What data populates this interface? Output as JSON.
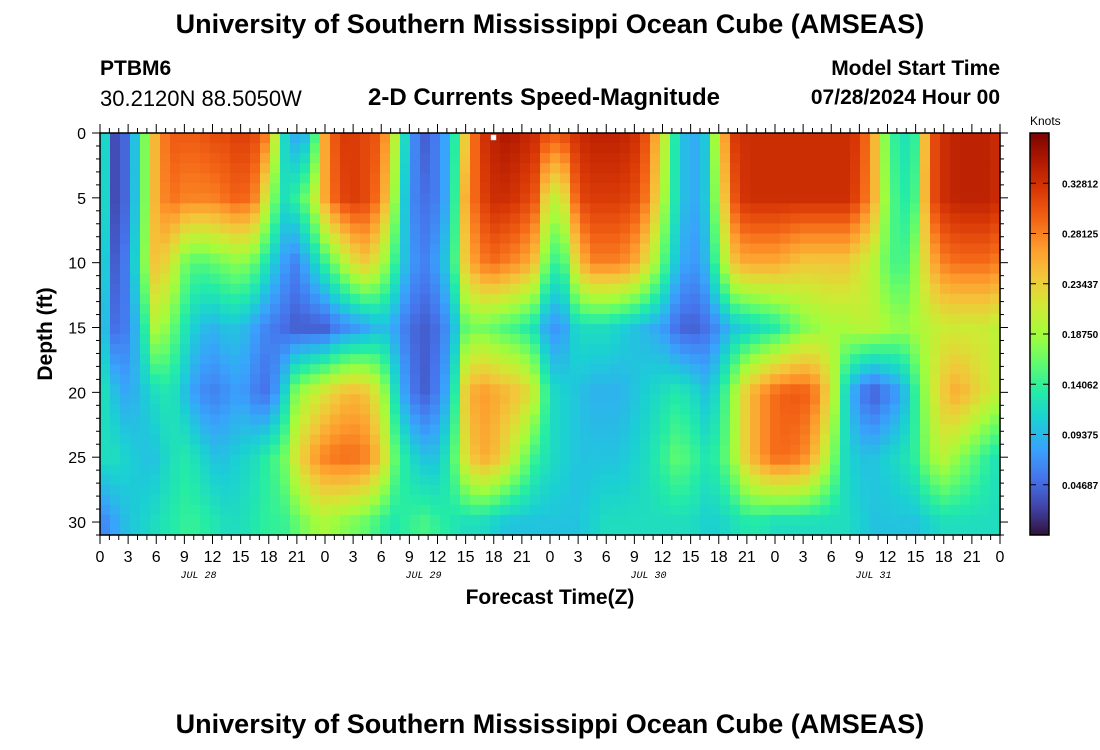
{
  "page": {
    "title_top": "University of Southern Mississippi Ocean Cube (AMSEAS)",
    "title_bottom": "University of Southern Mississippi Ocean Cube (AMSEAS)",
    "station_id": "PTBM6",
    "station_coords": "30.2120N  88.5050W",
    "plot_title": "2-D Currents Speed-Magnitude",
    "model_start_label": "Model Start Time",
    "model_start_value": "07/28/2024 Hour 00"
  },
  "chart_data": {
    "type": "heatmap",
    "title": "2-D Currents Speed-Magnitude",
    "xlabel": "Forecast Time(Z)",
    "ylabel": "Depth (ft)",
    "colorbar_label": "Knots",
    "xlim": [
      0,
      96
    ],
    "ylim": [
      31,
      0
    ],
    "x_tick_labels": [
      "0",
      "3",
      "6",
      "9",
      "12",
      "15",
      "18",
      "21",
      "0",
      "3",
      "6",
      "9",
      "12",
      "15",
      "18",
      "21",
      "0",
      "3",
      "6",
      "9",
      "12",
      "15",
      "18",
      "21",
      "0",
      "3",
      "6",
      "9",
      "12",
      "15",
      "18",
      "21",
      "0"
    ],
    "y_tick_labels": [
      "0",
      "5",
      "10",
      "15",
      "20",
      "25",
      "30"
    ],
    "y_ticks": [
      0,
      5,
      10,
      15,
      20,
      25,
      30
    ],
    "day_labels": [
      "JUL 28",
      "JUL 29",
      "JUL 30",
      "JUL 31"
    ],
    "colorbar_ticks": [
      "0.04687",
      "0.09375",
      "0.14062",
      "0.18750",
      "0.23437",
      "0.28125",
      "0.32812"
    ],
    "colorbar_range": [
      0.0,
      0.375
    ],
    "colormap": [
      "#30123b",
      "#4145ab",
      "#4675ed",
      "#39a2fc",
      "#1bcfd4",
      "#24eca6",
      "#61fc6c",
      "#a4fc3b",
      "#d1e834",
      "#f3c63a",
      "#fe9b2d",
      "#f36315",
      "#d93806",
      "#b11901",
      "#7a0402"
    ],
    "depths_ft": [
      0,
      5,
      10,
      15,
      20,
      25,
      30
    ],
    "x_hours": [
      0,
      1.5,
      3,
      4.5,
      6,
      7.5,
      9,
      10.5,
      12,
      13.5,
      15,
      16.5,
      18,
      19.5,
      21,
      22.5,
      24,
      25.5,
      27,
      28.5,
      30,
      31.5,
      33,
      34.5,
      36,
      37.5,
      39,
      40.5,
      42,
      43.5,
      45,
      46.5,
      48,
      49.5,
      51,
      52.5,
      54,
      55.5,
      57,
      58.5,
      60,
      61.5,
      63,
      64.5,
      66,
      67.5,
      69,
      70.5,
      72,
      73.5,
      75,
      76.5,
      78,
      79.5,
      81,
      82.5,
      84,
      85.5,
      87,
      88.5,
      90,
      91.5,
      93,
      94.5,
      96
    ],
    "speed_knots": [
      [
        0.16,
        0.03,
        0.05,
        0.15,
        0.26,
        0.3,
        0.3,
        0.3,
        0.31,
        0.31,
        0.32,
        0.31,
        0.28,
        0.12,
        0.08,
        0.1,
        0.26,
        0.32,
        0.32,
        0.31,
        0.3,
        0.2,
        0.08,
        0.04,
        0.06,
        0.1,
        0.24,
        0.32,
        0.34,
        0.35,
        0.34,
        0.33,
        0.3,
        0.31,
        0.33,
        0.34,
        0.34,
        0.34,
        0.33,
        0.3,
        0.22,
        0.12,
        0.08,
        0.1,
        0.22,
        0.32,
        0.33,
        0.33,
        0.33,
        0.33,
        0.33,
        0.33,
        0.33,
        0.33,
        0.32,
        0.26,
        0.16,
        0.12,
        0.14,
        0.3,
        0.33,
        0.34,
        0.34,
        0.34,
        0.33
      ],
      [
        0.16,
        0.03,
        0.05,
        0.15,
        0.26,
        0.29,
        0.28,
        0.28,
        0.28,
        0.29,
        0.3,
        0.28,
        0.2,
        0.12,
        0.14,
        0.18,
        0.26,
        0.31,
        0.32,
        0.31,
        0.28,
        0.18,
        0.07,
        0.05,
        0.06,
        0.1,
        0.26,
        0.31,
        0.33,
        0.33,
        0.32,
        0.3,
        0.2,
        0.22,
        0.31,
        0.32,
        0.32,
        0.32,
        0.31,
        0.28,
        0.2,
        0.12,
        0.08,
        0.1,
        0.2,
        0.3,
        0.33,
        0.33,
        0.33,
        0.33,
        0.33,
        0.33,
        0.33,
        0.33,
        0.31,
        0.26,
        0.17,
        0.13,
        0.15,
        0.3,
        0.33,
        0.34,
        0.34,
        0.34,
        0.33
      ],
      [
        0.14,
        0.04,
        0.06,
        0.16,
        0.25,
        0.22,
        0.17,
        0.15,
        0.16,
        0.17,
        0.18,
        0.16,
        0.12,
        0.08,
        0.06,
        0.1,
        0.14,
        0.18,
        0.22,
        0.24,
        0.2,
        0.14,
        0.08,
        0.06,
        0.08,
        0.12,
        0.24,
        0.28,
        0.29,
        0.28,
        0.27,
        0.24,
        0.14,
        0.15,
        0.24,
        0.28,
        0.28,
        0.28,
        0.26,
        0.22,
        0.16,
        0.1,
        0.07,
        0.09,
        0.16,
        0.24,
        0.26,
        0.26,
        0.26,
        0.25,
        0.24,
        0.24,
        0.24,
        0.24,
        0.22,
        0.2,
        0.16,
        0.14,
        0.18,
        0.25,
        0.28,
        0.29,
        0.29,
        0.29,
        0.28
      ],
      [
        0.12,
        0.05,
        0.06,
        0.12,
        0.2,
        0.17,
        0.13,
        0.1,
        0.09,
        0.1,
        0.1,
        0.08,
        0.06,
        0.05,
        0.04,
        0.04,
        0.04,
        0.06,
        0.07,
        0.08,
        0.1,
        0.08,
        0.05,
        0.04,
        0.05,
        0.08,
        0.16,
        0.17,
        0.16,
        0.15,
        0.14,
        0.12,
        0.07,
        0.08,
        0.12,
        0.12,
        0.12,
        0.11,
        0.1,
        0.09,
        0.08,
        0.05,
        0.04,
        0.05,
        0.07,
        0.1,
        0.11,
        0.12,
        0.13,
        0.15,
        0.17,
        0.18,
        0.19,
        0.19,
        0.2,
        0.2,
        0.19,
        0.18,
        0.19,
        0.2,
        0.21,
        0.21,
        0.21,
        0.21,
        0.2
      ],
      [
        0.13,
        0.1,
        0.08,
        0.1,
        0.12,
        0.13,
        0.1,
        0.07,
        0.06,
        0.07,
        0.08,
        0.06,
        0.05,
        0.1,
        0.18,
        0.2,
        0.22,
        0.24,
        0.25,
        0.24,
        0.2,
        0.12,
        0.06,
        0.04,
        0.06,
        0.1,
        0.24,
        0.27,
        0.26,
        0.25,
        0.24,
        0.2,
        0.12,
        0.11,
        0.1,
        0.09,
        0.09,
        0.09,
        0.1,
        0.11,
        0.12,
        0.13,
        0.12,
        0.1,
        0.12,
        0.18,
        0.24,
        0.27,
        0.29,
        0.3,
        0.3,
        0.28,
        0.22,
        0.12,
        0.06,
        0.04,
        0.06,
        0.08,
        0.14,
        0.2,
        0.24,
        0.26,
        0.24,
        0.22,
        0.2
      ],
      [
        0.12,
        0.12,
        0.11,
        0.1,
        0.1,
        0.12,
        0.13,
        0.12,
        0.1,
        0.1,
        0.11,
        0.12,
        0.14,
        0.16,
        0.22,
        0.26,
        0.28,
        0.29,
        0.29,
        0.28,
        0.24,
        0.16,
        0.12,
        0.1,
        0.1,
        0.14,
        0.22,
        0.26,
        0.25,
        0.22,
        0.18,
        0.14,
        0.12,
        0.11,
        0.1,
        0.1,
        0.1,
        0.1,
        0.11,
        0.12,
        0.14,
        0.16,
        0.15,
        0.13,
        0.14,
        0.18,
        0.24,
        0.27,
        0.29,
        0.29,
        0.28,
        0.24,
        0.18,
        0.12,
        0.1,
        0.1,
        0.11,
        0.12,
        0.14,
        0.18,
        0.2,
        0.18,
        0.16,
        0.14,
        0.12
      ],
      [
        0.06,
        0.08,
        0.1,
        0.11,
        0.12,
        0.13,
        0.14,
        0.14,
        0.13,
        0.12,
        0.12,
        0.13,
        0.14,
        0.14,
        0.16,
        0.18,
        0.19,
        0.18,
        0.17,
        0.16,
        0.14,
        0.13,
        0.14,
        0.15,
        0.14,
        0.13,
        0.12,
        0.12,
        0.11,
        0.1,
        0.1,
        0.1,
        0.1,
        0.1,
        0.1,
        0.11,
        0.12,
        0.12,
        0.12,
        0.12,
        0.12,
        0.12,
        0.12,
        0.11,
        0.11,
        0.12,
        0.13,
        0.13,
        0.12,
        0.12,
        0.12,
        0.12,
        0.12,
        0.12,
        0.11,
        0.1,
        0.1,
        0.1,
        0.1,
        0.11,
        0.12,
        0.12,
        0.12,
        0.12,
        0.12
      ]
    ]
  }
}
